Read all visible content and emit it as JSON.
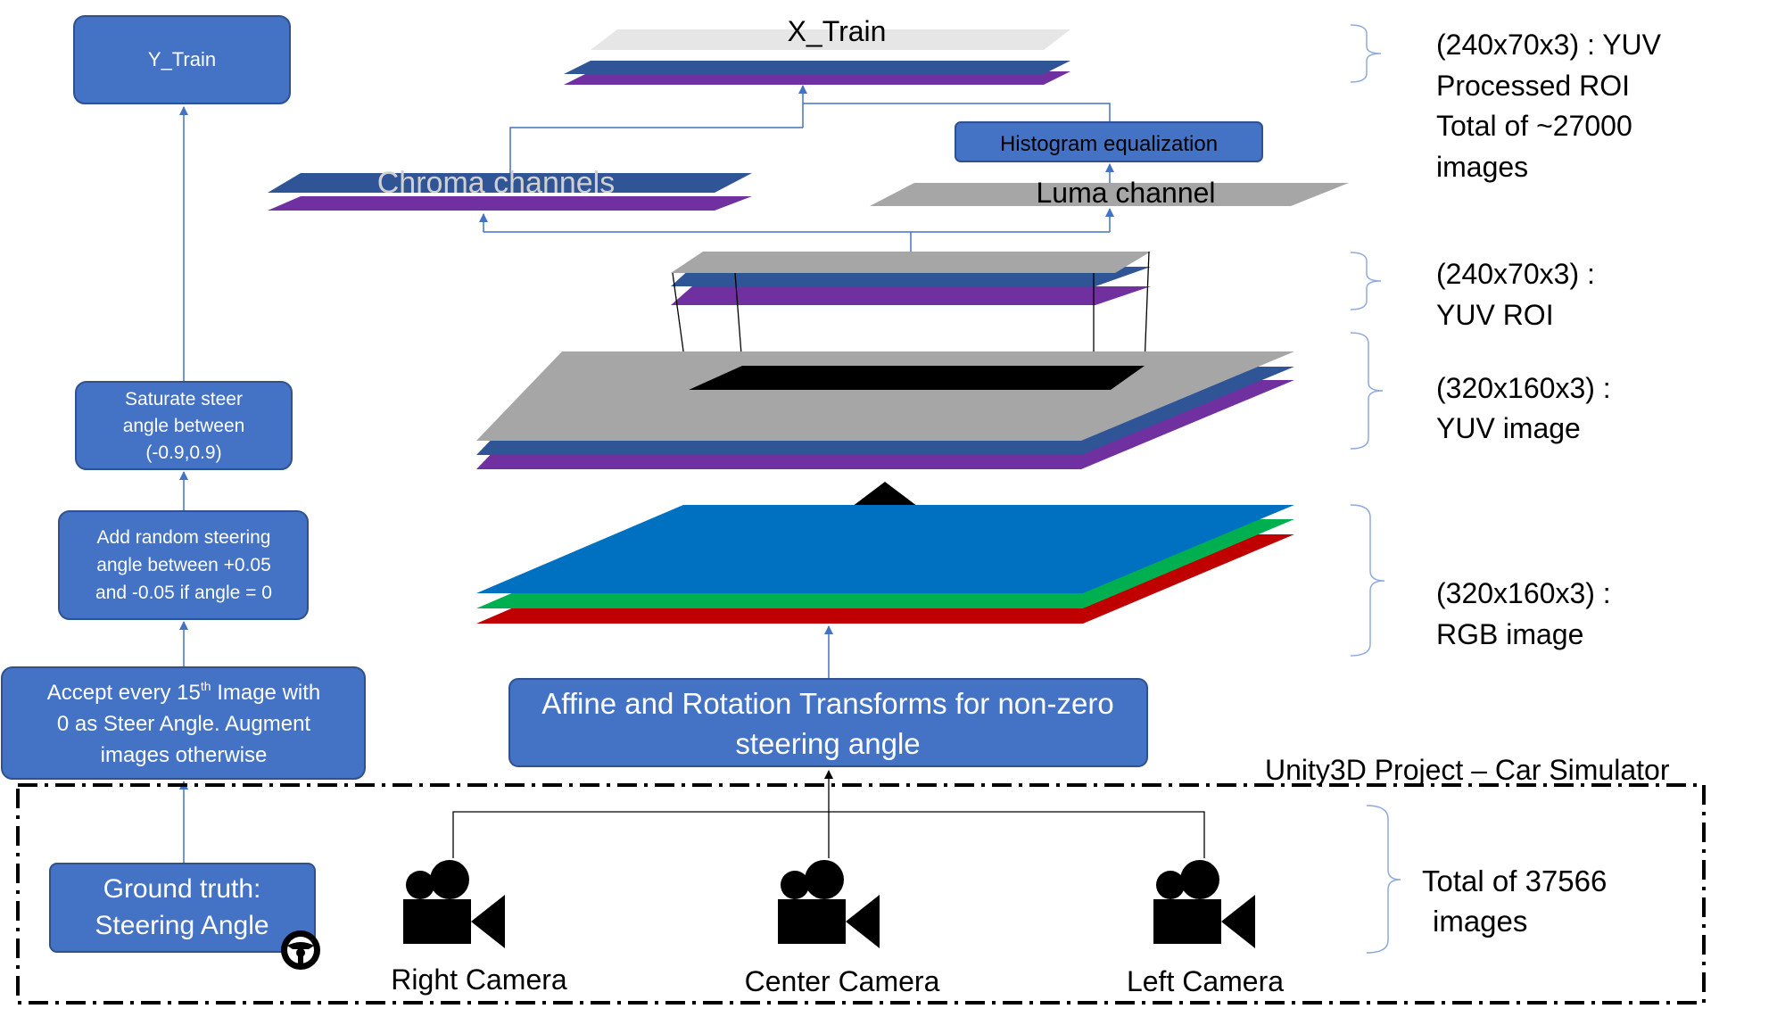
{
  "colors": {
    "box_fill": "#4472c4",
    "box_stroke": "#2f528f",
    "arrow": "#4472c4",
    "layer_blue": "#2f5597",
    "layer_purple": "#7030a0",
    "layer_gray": "#a6a6a6",
    "layer_light": "#e7e6e6",
    "rgb_blue": "#0070c0",
    "rgb_green": "#00b050",
    "rgb_red": "#c00000"
  },
  "left_pipeline": {
    "y_train": "Y_Train",
    "saturate": [
      "Saturate steer",
      "angle between",
      "(-0.9,0.9)"
    ],
    "random_steer": [
      "Add random steering",
      "angle between +0.05",
      "and -0.05 if angle = 0"
    ],
    "accept": {
      "line1_a": "Accept every 15",
      "line1_sup": "th",
      "line1_b": " Image with",
      "line2": "0 as Steer Angle. Augment",
      "line3": "images otherwise"
    },
    "ground_truth": [
      "Ground truth:",
      "Steering Angle"
    ]
  },
  "center_pipeline": {
    "x_train": "X_Train",
    "chroma": "Chroma channels",
    "luma": "Luma channel",
    "histogram": "Histogram equalization",
    "affine": [
      "Affine and Rotation Transforms for non-zero",
      "steering angle"
    ]
  },
  "annotations": {
    "processed": [
      "(240x70x3) : YUV",
      "Processed ROI",
      "Total of ~27000",
      "images"
    ],
    "yuv_roi": [
      "(240x70x3) :",
      "YUV ROI"
    ],
    "yuv_image": [
      "(320x160x3) :",
      "YUV image"
    ],
    "rgb_image": [
      "(320x160x3) :",
      "RGB image"
    ],
    "total_images": [
      "Total of 37566",
      "images"
    ]
  },
  "simulator": {
    "title": "Unity3D  Project – Car Simulator",
    "cameras": [
      "Right Camera",
      "Center Camera",
      "Left Camera"
    ],
    "camera_icon": "video-camera-icon",
    "wheel_icon": "steering-wheel-icon"
  }
}
